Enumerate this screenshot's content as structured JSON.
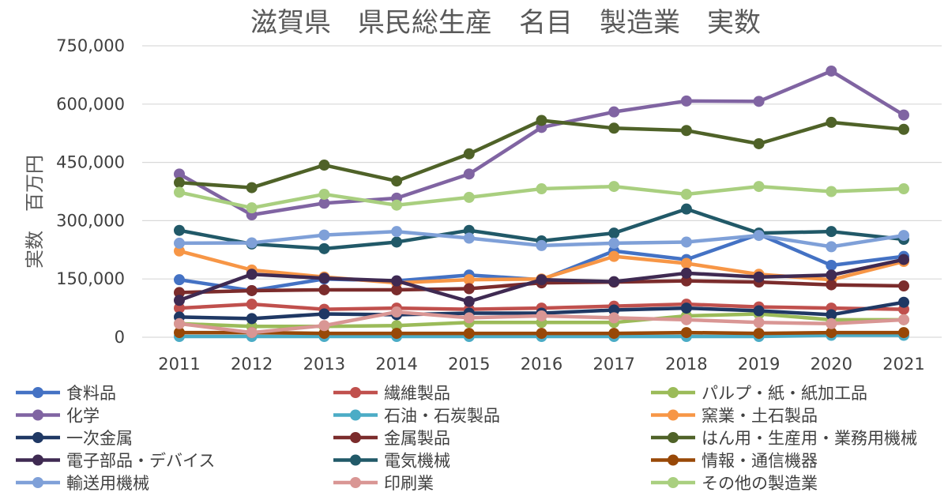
{
  "chart_data": {
    "type": "line",
    "title": "滋賀県　県民総生産　名目　製造業　実数",
    "xlabel": "",
    "ylabel": "実数　百万円",
    "ylim": [
      0,
      750000
    ],
    "yticks": [
      0,
      150000,
      300000,
      450000,
      600000,
      750000
    ],
    "ytick_labels": [
      "0",
      "150,000",
      "300,000",
      "450,000",
      "600,000",
      "750,000"
    ],
    "grid": true,
    "legend_position": "bottom",
    "x": [
      "2011",
      "2012",
      "2013",
      "2014",
      "2015",
      "2016",
      "2017",
      "2018",
      "2019",
      "2020",
      "2021"
    ],
    "series": [
      {
        "name": "食料品",
        "color": "#4472C4",
        "values": [
          148000,
          120000,
          150000,
          145000,
          160000,
          148000,
          222000,
          200000,
          265000,
          185000,
          208000
        ]
      },
      {
        "name": "繊維製品",
        "color": "#C0504D",
        "values": [
          75000,
          85000,
          72000,
          75000,
          72000,
          75000,
          80000,
          85000,
          78000,
          75000,
          72000
        ]
      },
      {
        "name": "パルプ・紙・紙加工品",
        "color": "#9BBB59",
        "values": [
          35000,
          28000,
          28000,
          30000,
          38000,
          38000,
          38000,
          55000,
          60000,
          45000,
          45000
        ]
      },
      {
        "name": "化学",
        "color": "#8064A2",
        "values": [
          420000,
          315000,
          345000,
          358000,
          420000,
          540000,
          580000,
          608000,
          607000,
          685000,
          572000
        ]
      },
      {
        "name": "石油・石炭製品",
        "color": "#4BACC6",
        "values": [
          2000,
          2000,
          2000,
          2000,
          2000,
          2000,
          2000,
          2000,
          2000,
          5000,
          5000
        ]
      },
      {
        "name": "窯業・土石製品",
        "color": "#F79646",
        "values": [
          222000,
          173000,
          155000,
          140000,
          148000,
          150000,
          208000,
          190000,
          162000,
          148000,
          195000
        ]
      },
      {
        "name": "一次金属",
        "color": "#1F3864",
        "values": [
          52000,
          48000,
          60000,
          58000,
          62000,
          62000,
          70000,
          75000,
          68000,
          58000,
          90000
        ]
      },
      {
        "name": "金属製品",
        "color": "#7B2C2C",
        "values": [
          115000,
          120000,
          122000,
          122000,
          125000,
          140000,
          142000,
          145000,
          142000,
          135000,
          132000
        ]
      },
      {
        "name": "はん用・生産用・業務用機械",
        "color": "#4F6228",
        "values": [
          398000,
          385000,
          443000,
          402000,
          472000,
          558000,
          538000,
          532000,
          498000,
          553000,
          535000
        ]
      },
      {
        "name": "電子部品・デバイス",
        "color": "#3F2A52",
        "values": [
          95000,
          162000,
          152000,
          145000,
          92000,
          148000,
          143000,
          165000,
          155000,
          160000,
          200000
        ]
      },
      {
        "name": "電気機械",
        "color": "#215968",
        "values": [
          275000,
          240000,
          228000,
          245000,
          275000,
          248000,
          268000,
          330000,
          268000,
          272000,
          252000
        ]
      },
      {
        "name": "情報・通信機器",
        "color": "#984807",
        "values": [
          12000,
          12000,
          10000,
          10000,
          10000,
          10000,
          10000,
          12000,
          10000,
          12000,
          12000
        ]
      },
      {
        "name": "輸送用機械",
        "color": "#7FA0D8",
        "values": [
          242000,
          243000,
          263000,
          272000,
          255000,
          236000,
          242000,
          245000,
          262000,
          233000,
          262000
        ]
      },
      {
        "name": "印刷業",
        "color": "#D99694",
        "values": [
          35000,
          12000,
          30000,
          65000,
          50000,
          55000,
          50000,
          45000,
          38000,
          35000,
          45000
        ]
      },
      {
        "name": "その他の製造業",
        "color": "#A9CF7F",
        "values": [
          373000,
          333000,
          368000,
          340000,
          360000,
          382000,
          388000,
          368000,
          388000,
          375000,
          382000
        ]
      }
    ]
  }
}
